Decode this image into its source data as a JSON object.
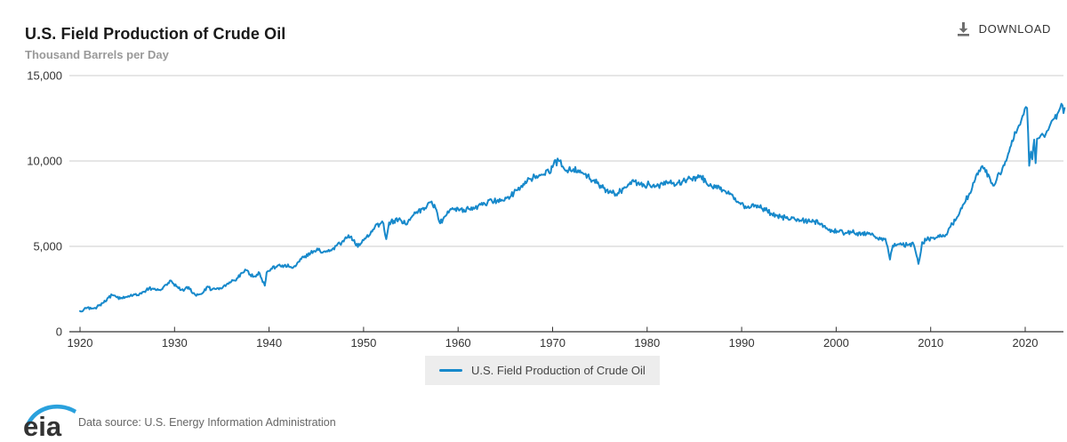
{
  "header": {
    "title": "U.S. Field Production of Crude Oil",
    "download_label": "DOWNLOAD"
  },
  "chart": {
    "units_label": "Thousand Barrels per Day"
  },
  "legend": {
    "label": "U.S. Field Production of Crude Oil"
  },
  "footer": {
    "logo_text": "eia",
    "data_source": "Data source: U.S. Energy Information Administration"
  },
  "colors": {
    "line_blue": "#1789cb",
    "grid": "#cccccc",
    "axis": "#333333",
    "text_dark": "#333333",
    "subtitle_gray": "#999999",
    "legend_bg": "#ededed",
    "icon_gray": "#6e6e6e",
    "logo_blue": "#2aa1dd"
  },
  "chart_data": {
    "type": "line",
    "title": "U.S. Field Production of Crude Oil",
    "xlabel": "",
    "ylabel": "Thousand Barrels per Day",
    "xlim": [
      1918.9,
      2024.3
    ],
    "ylim": [
      0,
      15000
    ],
    "grid": true,
    "legend_position": "bottom",
    "x_ticks": [
      1920,
      1930,
      1940,
      1950,
      1960,
      1970,
      1980,
      1990,
      2000,
      2010,
      2020
    ],
    "y_ticks": [
      {
        "v": 0,
        "label": "0"
      },
      {
        "v": 5000,
        "label": "5,000"
      },
      {
        "v": 10000,
        "label": "10,000"
      },
      {
        "v": 15000,
        "label": "15,000"
      }
    ],
    "series": [
      {
        "name": "U.S. Field Production of Crude Oil",
        "color": "#1789cb",
        "points": [
          [
            1920.0,
            1210
          ],
          [
            1920.4,
            1300
          ],
          [
            1920.8,
            1420
          ],
          [
            1921.2,
            1350
          ],
          [
            1921.6,
            1400
          ],
          [
            1922.0,
            1530
          ],
          [
            1922.5,
            1700
          ],
          [
            1923.0,
            2000
          ],
          [
            1923.4,
            2150
          ],
          [
            1923.8,
            2050
          ],
          [
            1924.3,
            1950
          ],
          [
            1924.8,
            2030
          ],
          [
            1925.3,
            2100
          ],
          [
            1925.8,
            2180
          ],
          [
            1926.3,
            2230
          ],
          [
            1926.8,
            2350
          ],
          [
            1927.3,
            2550
          ],
          [
            1927.8,
            2500
          ],
          [
            1928.3,
            2450
          ],
          [
            1928.8,
            2600
          ],
          [
            1929.3,
            2850
          ],
          [
            1929.7,
            2950
          ],
          [
            1930.2,
            2650
          ],
          [
            1930.7,
            2450
          ],
          [
            1931.1,
            2500
          ],
          [
            1931.5,
            2620
          ],
          [
            1931.9,
            2250
          ],
          [
            1932.3,
            2100
          ],
          [
            1932.7,
            2200
          ],
          [
            1933.1,
            2350
          ],
          [
            1933.5,
            2650
          ],
          [
            1933.9,
            2450
          ],
          [
            1934.3,
            2500
          ],
          [
            1934.8,
            2560
          ],
          [
            1935.2,
            2680
          ],
          [
            1935.7,
            2800
          ],
          [
            1936.2,
            3000
          ],
          [
            1936.7,
            3150
          ],
          [
            1937.2,
            3450
          ],
          [
            1937.6,
            3600
          ],
          [
            1938.0,
            3350
          ],
          [
            1938.5,
            3250
          ],
          [
            1939.0,
            3420
          ],
          [
            1939.55,
            2700
          ],
          [
            1939.75,
            3480
          ],
          [
            1940.2,
            3680
          ],
          [
            1940.7,
            3780
          ],
          [
            1941.2,
            3840
          ],
          [
            1941.7,
            3920
          ],
          [
            1942.2,
            3780
          ],
          [
            1942.7,
            3850
          ],
          [
            1943.2,
            4100
          ],
          [
            1943.7,
            4350
          ],
          [
            1944.2,
            4600
          ],
          [
            1944.7,
            4720
          ],
          [
            1945.2,
            4780
          ],
          [
            1945.7,
            4650
          ],
          [
            1946.2,
            4700
          ],
          [
            1946.7,
            4850
          ],
          [
            1947.2,
            5080
          ],
          [
            1947.7,
            5250
          ],
          [
            1948.2,
            5480
          ],
          [
            1948.7,
            5580
          ],
          [
            1949.2,
            5050
          ],
          [
            1949.7,
            5150
          ],
          [
            1950.2,
            5450
          ],
          [
            1950.7,
            5700
          ],
          [
            1951.2,
            6150
          ],
          [
            1951.7,
            6300
          ],
          [
            1952.1,
            6350
          ],
          [
            1952.4,
            5420
          ],
          [
            1952.7,
            6400
          ],
          [
            1953.2,
            6500
          ],
          [
            1953.7,
            6580
          ],
          [
            1954.2,
            6350
          ],
          [
            1954.7,
            6450
          ],
          [
            1955.2,
            6800
          ],
          [
            1955.7,
            6950
          ],
          [
            1956.2,
            7200
          ],
          [
            1956.7,
            7350
          ],
          [
            1957.1,
            7580
          ],
          [
            1957.6,
            7250
          ],
          [
            1958.1,
            6350
          ],
          [
            1958.6,
            6750
          ],
          [
            1959.1,
            7100
          ],
          [
            1959.6,
            7150
          ],
          [
            1960.1,
            7100
          ],
          [
            1960.6,
            7150
          ],
          [
            1961.1,
            7200
          ],
          [
            1961.6,
            7280
          ],
          [
            1962.1,
            7350
          ],
          [
            1962.6,
            7420
          ],
          [
            1963.1,
            7550
          ],
          [
            1963.6,
            7630
          ],
          [
            1964.1,
            7650
          ],
          [
            1964.6,
            7730
          ],
          [
            1965.1,
            7820
          ],
          [
            1965.6,
            7950
          ],
          [
            1966.1,
            8300
          ],
          [
            1966.6,
            8450
          ],
          [
            1967.1,
            8800
          ],
          [
            1967.6,
            8950
          ],
          [
            1968.1,
            9100
          ],
          [
            1968.6,
            9180
          ],
          [
            1969.1,
            9220
          ],
          [
            1969.6,
            9350
          ],
          [
            1970.1,
            9800
          ],
          [
            1970.85,
            10040
          ],
          [
            1971.2,
            9550
          ],
          [
            1971.7,
            9480
          ],
          [
            1972.2,
            9520
          ],
          [
            1972.7,
            9460
          ],
          [
            1973.2,
            9280
          ],
          [
            1973.7,
            9150
          ],
          [
            1974.2,
            8850
          ],
          [
            1974.7,
            8700
          ],
          [
            1975.2,
            8450
          ],
          [
            1975.7,
            8300
          ],
          [
            1976.2,
            8150
          ],
          [
            1976.7,
            8050
          ],
          [
            1977.2,
            8250
          ],
          [
            1977.7,
            8450
          ],
          [
            1978.2,
            8750
          ],
          [
            1978.7,
            8800
          ],
          [
            1979.2,
            8600
          ],
          [
            1979.7,
            8580
          ],
          [
            1980.2,
            8650
          ],
          [
            1980.7,
            8620
          ],
          [
            1981.2,
            8580
          ],
          [
            1981.7,
            8600
          ],
          [
            1982.2,
            8680
          ],
          [
            1982.7,
            8700
          ],
          [
            1983.2,
            8720
          ],
          [
            1983.7,
            8780
          ],
          [
            1984.2,
            8900
          ],
          [
            1984.7,
            8950
          ],
          [
            1985.2,
            9050
          ],
          [
            1985.7,
            9100
          ],
          [
            1986.2,
            8800
          ],
          [
            1986.7,
            8650
          ],
          [
            1987.2,
            8450
          ],
          [
            1987.7,
            8350
          ],
          [
            1988.2,
            8250
          ],
          [
            1988.7,
            8050
          ],
          [
            1989.2,
            7750
          ],
          [
            1989.7,
            7550
          ],
          [
            1990.2,
            7400
          ],
          [
            1990.7,
            7350
          ],
          [
            1991.2,
            7480
          ],
          [
            1991.7,
            7400
          ],
          [
            1992.2,
            7200
          ],
          [
            1992.7,
            7100
          ],
          [
            1993.2,
            6900
          ],
          [
            1993.7,
            6800
          ],
          [
            1994.2,
            6700
          ],
          [
            1994.7,
            6650
          ],
          [
            1995.2,
            6600
          ],
          [
            1995.7,
            6550
          ],
          [
            1996.2,
            6520
          ],
          [
            1996.7,
            6480
          ],
          [
            1997.2,
            6450
          ],
          [
            1997.7,
            6480
          ],
          [
            1998.2,
            6350
          ],
          [
            1998.7,
            6200
          ],
          [
            1999.2,
            5950
          ],
          [
            1999.7,
            5900
          ],
          [
            2000.2,
            5850
          ],
          [
            2000.7,
            5820
          ],
          [
            2001.2,
            5800
          ],
          [
            2001.7,
            5830
          ],
          [
            2002.2,
            5780
          ],
          [
            2002.7,
            5750
          ],
          [
            2003.2,
            5720
          ],
          [
            2003.7,
            5680
          ],
          [
            2004.2,
            5480
          ],
          [
            2004.7,
            5420
          ],
          [
            2005.2,
            5450
          ],
          [
            2005.69,
            4230
          ],
          [
            2006.0,
            5050
          ],
          [
            2006.5,
            5120
          ],
          [
            2007.0,
            5100
          ],
          [
            2007.5,
            5080
          ],
          [
            2008.2,
            5100
          ],
          [
            2008.7,
            3970
          ],
          [
            2009.1,
            5250
          ],
          [
            2009.6,
            5380
          ],
          [
            2010.1,
            5500
          ],
          [
            2010.6,
            5520
          ],
          [
            2011.1,
            5580
          ],
          [
            2011.6,
            5680
          ],
          [
            2012.1,
            6150
          ],
          [
            2012.6,
            6500
          ],
          [
            2013.1,
            7050
          ],
          [
            2013.6,
            7550
          ],
          [
            2014.1,
            8100
          ],
          [
            2014.6,
            8750
          ],
          [
            2015.1,
            9450
          ],
          [
            2015.35,
            9650
          ],
          [
            2015.8,
            9350
          ],
          [
            2016.2,
            9100
          ],
          [
            2016.7,
            8550
          ],
          [
            2017.0,
            8950
          ],
          [
            2017.5,
            9350
          ],
          [
            2018.0,
            10000
          ],
          [
            2018.5,
            10900
          ],
          [
            2018.9,
            11700
          ],
          [
            2019.2,
            11900
          ],
          [
            2019.6,
            12400
          ],
          [
            2019.95,
            13050
          ],
          [
            2020.2,
            13100
          ],
          [
            2020.42,
            9720
          ],
          [
            2020.6,
            10550
          ],
          [
            2020.75,
            10100
          ],
          [
            2020.95,
            11250
          ],
          [
            2021.1,
            9870
          ],
          [
            2021.25,
            11300
          ],
          [
            2021.5,
            11350
          ],
          [
            2021.8,
            11600
          ],
          [
            2022.05,
            11400
          ],
          [
            2022.3,
            11750
          ],
          [
            2022.6,
            12050
          ],
          [
            2022.9,
            12400
          ],
          [
            2023.1,
            12500
          ],
          [
            2023.4,
            12750
          ],
          [
            2023.7,
            13100
          ],
          [
            2023.95,
            13250
          ],
          [
            2024.05,
            12800
          ],
          [
            2024.17,
            13100
          ]
        ]
      }
    ]
  }
}
